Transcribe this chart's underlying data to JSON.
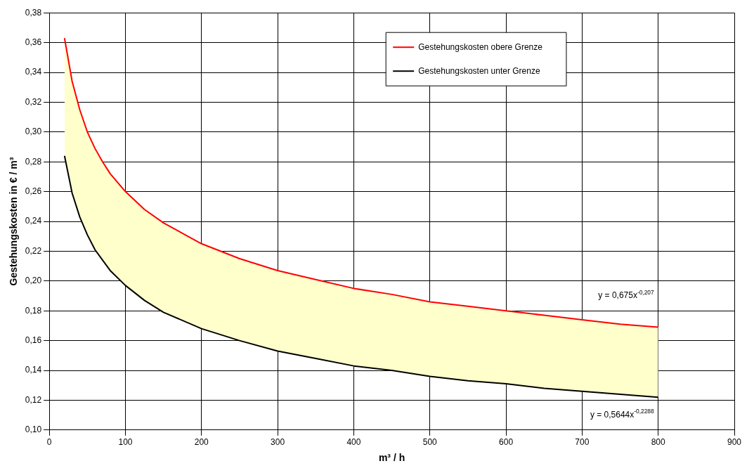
{
  "chart_data": {
    "type": "line",
    "xlabel": "m³ / h",
    "ylabel": "Gestehungskosten in € / m³",
    "x": [
      20,
      30,
      40,
      50,
      60,
      70,
      80,
      100,
      125,
      150,
      200,
      250,
      300,
      350,
      400,
      450,
      500,
      550,
      600,
      650,
      700,
      750,
      800
    ],
    "series": [
      {
        "name": "Gestehungskosten obere Grenze",
        "color": "#ff0000",
        "values": [
          0.363,
          0.334,
          0.315,
          0.3,
          0.289,
          0.28,
          0.272,
          0.26,
          0.248,
          0.239,
          0.225,
          0.215,
          0.207,
          0.201,
          0.195,
          0.191,
          0.186,
          0.183,
          0.18,
          0.177,
          0.174,
          0.171,
          0.169
        ],
        "lower": [
          0.284,
          0.259,
          0.243,
          0.231,
          0.221,
          0.214,
          0.207,
          0.197,
          0.187,
          0.179,
          0.168,
          0.16,
          0.153,
          0.148,
          0.143,
          0.14,
          0.136,
          0.133,
          0.131,
          0.128,
          0.126,
          0.124,
          0.122
        ],
        "upper": [
          0.363,
          0.334,
          0.315,
          0.3,
          0.289,
          0.28,
          0.272,
          0.26,
          0.248,
          0.239,
          0.225,
          0.215,
          0.207,
          0.201,
          0.195,
          0.191,
          0.186,
          0.183,
          0.18,
          0.177,
          0.174,
          0.171,
          0.169
        ]
      },
      {
        "name": "Gestehungskosten unter Grenze",
        "color": "#000000",
        "values": [
          0.284,
          0.259,
          0.243,
          0.231,
          0.221,
          0.214,
          0.207,
          0.197,
          0.187,
          0.179,
          0.168,
          0.16,
          0.153,
          0.148,
          0.143,
          0.14,
          0.136,
          0.133,
          0.131,
          0.128,
          0.126,
          0.124,
          0.122
        ]
      }
    ],
    "xlim": [
      0,
      900
    ],
    "xticks": [
      0,
      100,
      200,
      300,
      400,
      500,
      600,
      700,
      800,
      900
    ],
    "ylim": [
      0.1,
      0.38
    ],
    "yticks": [
      {
        "value": 0.1,
        "label": "0,10"
      },
      {
        "value": 0.12,
        "label": "0,12"
      },
      {
        "value": 0.14,
        "label": "0,14"
      },
      {
        "value": 0.16,
        "label": "0,16"
      },
      {
        "value": 0.18,
        "label": "0,18"
      },
      {
        "value": 0.2,
        "label": "0,20"
      },
      {
        "value": 0.22,
        "label": "0,22"
      },
      {
        "value": 0.24,
        "label": "0,24"
      },
      {
        "value": 0.26,
        "label": "0,26"
      },
      {
        "value": 0.28,
        "label": "0,28"
      },
      {
        "value": 0.3,
        "label": "0,30"
      },
      {
        "value": 0.32,
        "label": "0,32"
      },
      {
        "value": 0.34,
        "label": "0,34"
      },
      {
        "value": 0.36,
        "label": "0,36"
      },
      {
        "value": 0.38,
        "label": "0,38"
      }
    ],
    "annotations": [
      "y = 0,675x$^{-0,207}$",
      "y = 0,5644x$^{-0,2288}$"
    ],
    "grid": true,
    "legend": "top",
    "marker": "none",
    "line_style": "solid"
  }
}
